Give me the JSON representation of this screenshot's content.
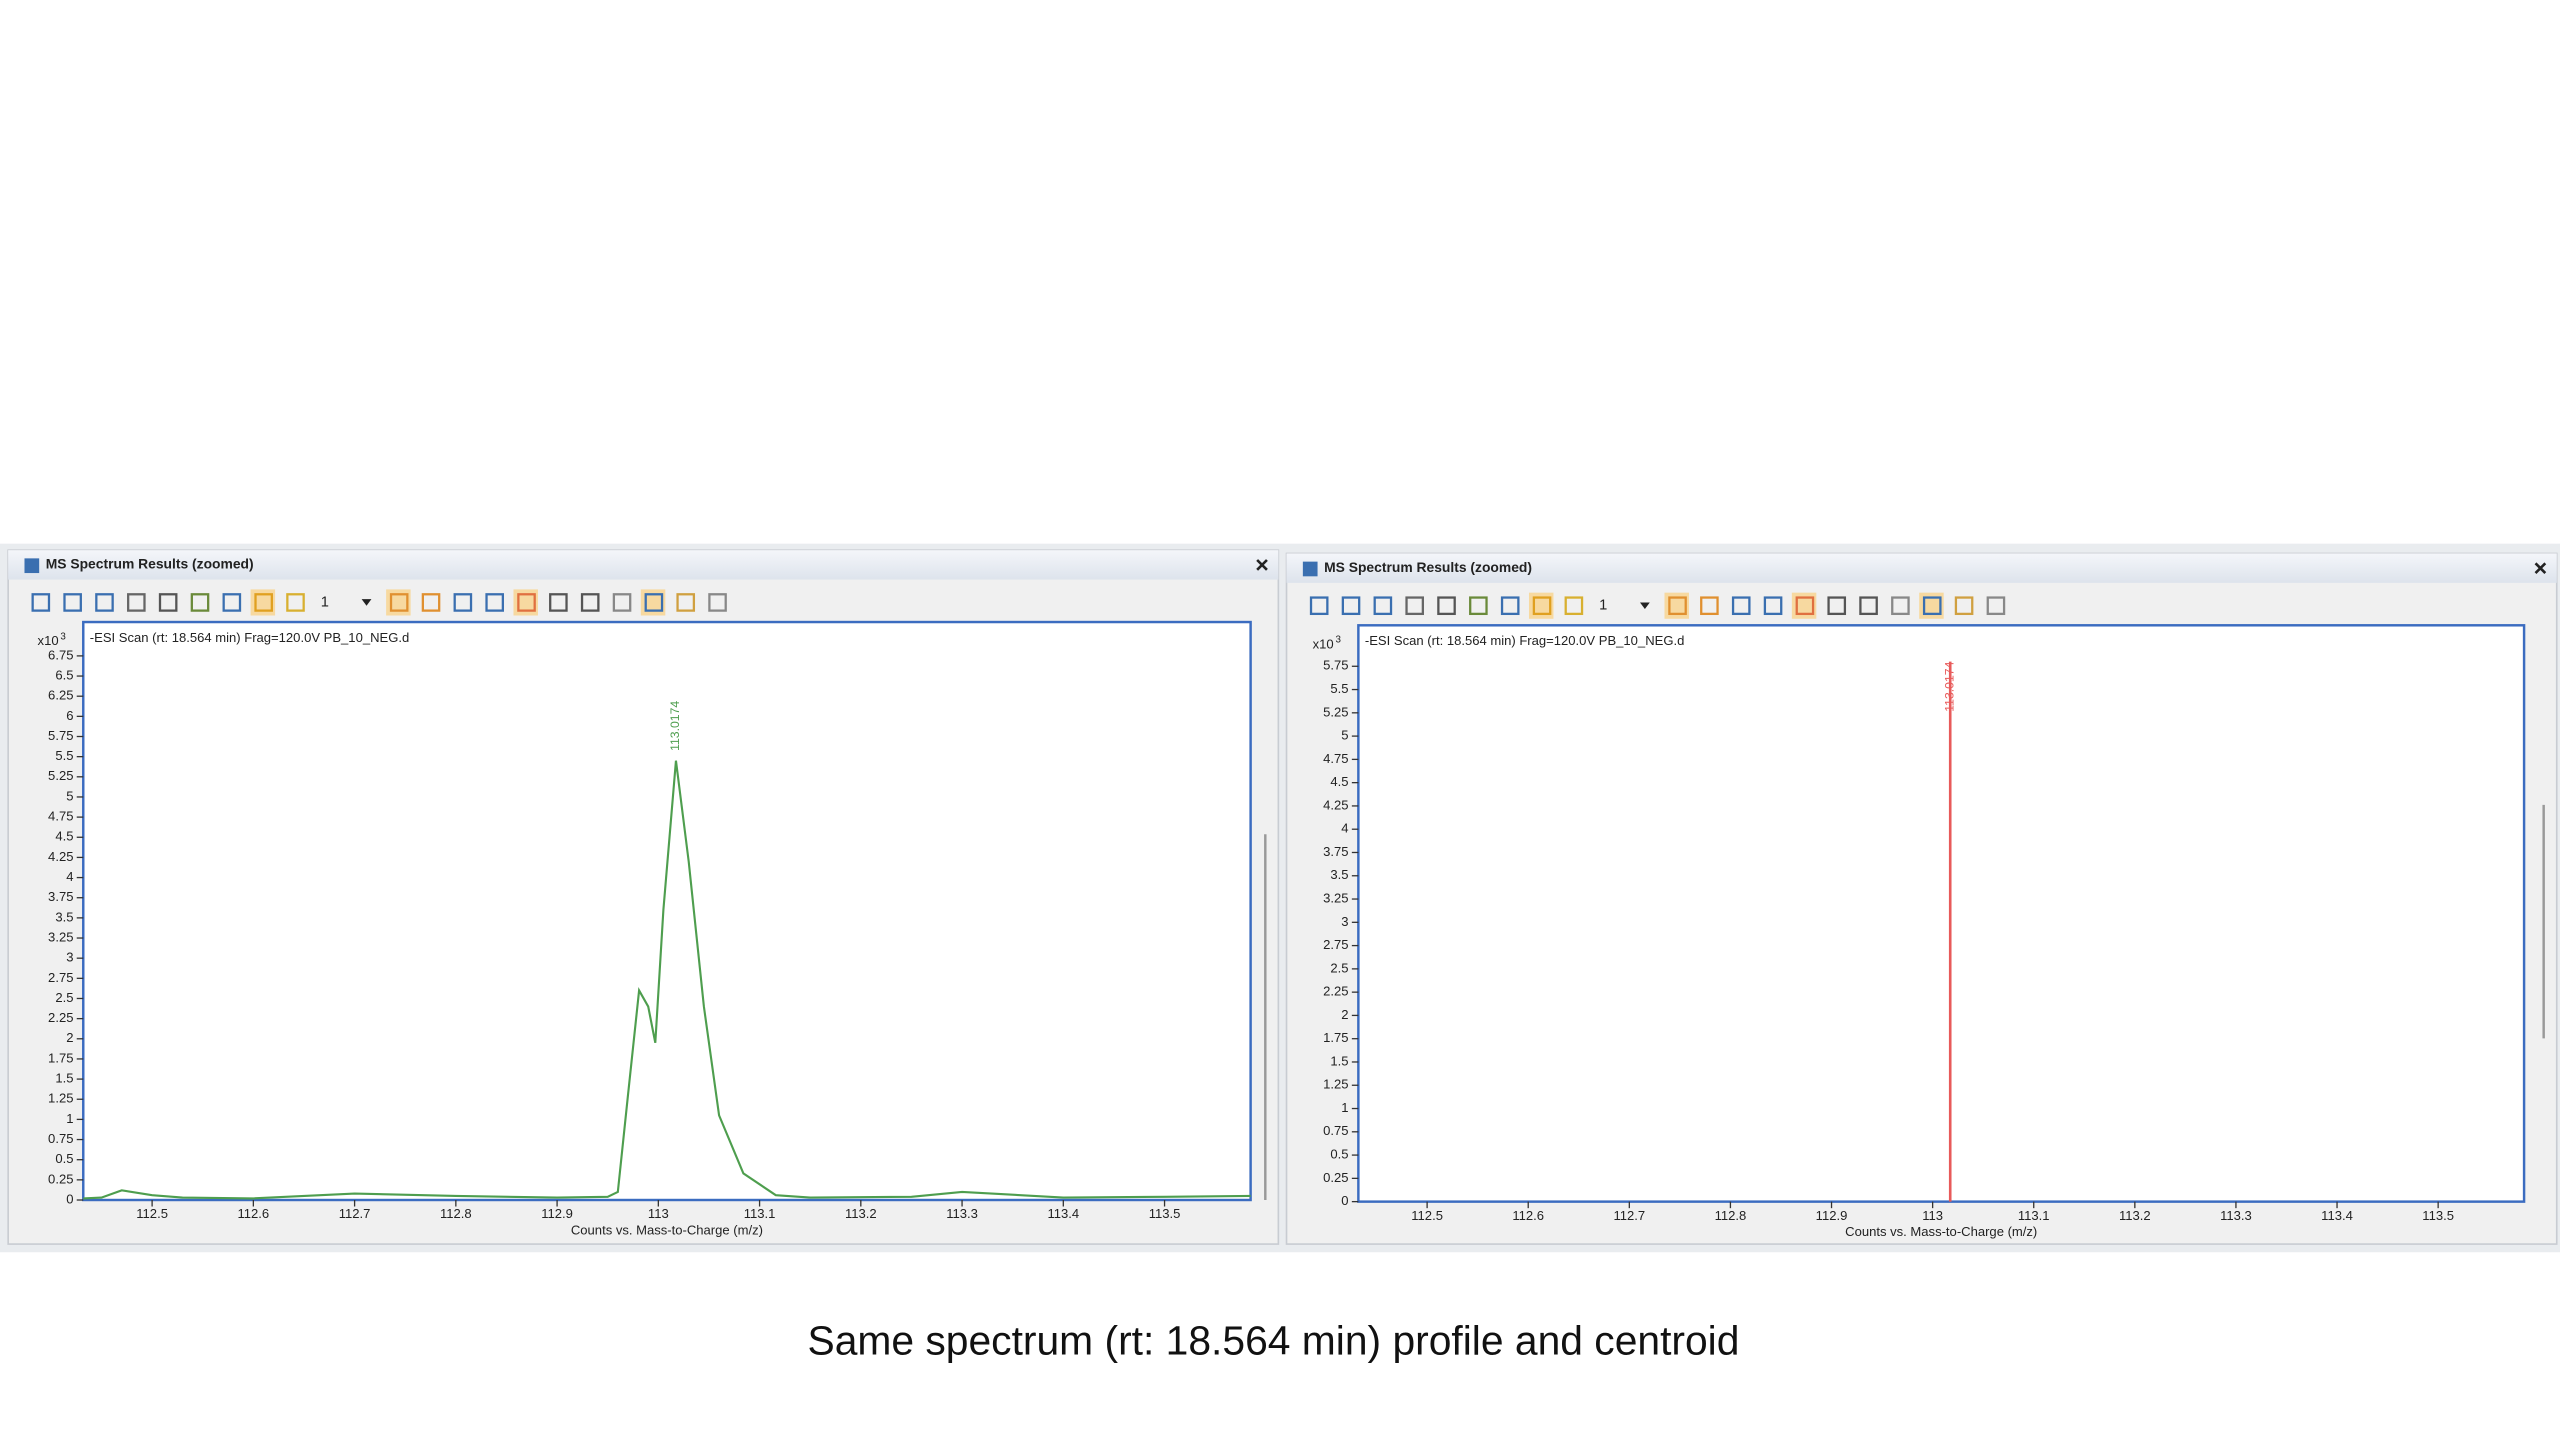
{
  "caption": "Same spectrum (rt: 18.564 min) profile and centroid",
  "chart_data": [
    {
      "type": "line",
      "window_title": "MS Spectrum Results (zoomed)",
      "toolbar_value": "1",
      "title": "-ESI Scan (rt: 18.564 min) Frag=120.0V PB_10_NEG.d",
      "x_label": "Counts vs. Mass-to-Charge (m/z)",
      "y_multiplier": "x10",
      "y_exponent": 3,
      "color": "#4e9e4e",
      "x": [
        112.432,
        112.45,
        112.47,
        112.5,
        112.53,
        112.6,
        112.7,
        112.8,
        112.9,
        112.95,
        112.96,
        112.97,
        112.981,
        112.99,
        112.997,
        113.005,
        113.0174,
        113.03,
        113.045,
        113.06,
        113.084,
        113.116,
        113.15,
        113.25,
        113.3,
        113.4,
        113.5,
        113.585
      ],
      "values": [
        0.02,
        0.03,
        0.12,
        0.06,
        0.03,
        0.02,
        0.08,
        0.05,
        0.03,
        0.04,
        0.1,
        1.3,
        2.6,
        2.4,
        1.95,
        3.6,
        5.45,
        4.2,
        2.4,
        1.05,
        0.33,
        0.06,
        0.03,
        0.04,
        0.1,
        0.03,
        0.04,
        0.05
      ],
      "annotations": [
        {
          "x": 113.0174,
          "y": 5.45
        }
      ],
      "xlim": [
        112.432,
        113.585
      ],
      "xticks": [
        112.5,
        112.6,
        112.7,
        112.8,
        112.9,
        113,
        113.1,
        113.2,
        113.3,
        113.4,
        113.5
      ],
      "ylim": [
        0,
        7.17
      ],
      "yticks": [
        0,
        0.25,
        0.5,
        0.75,
        1,
        1.25,
        1.5,
        1.75,
        2,
        2.25,
        2.5,
        2.75,
        3,
        3.25,
        3.5,
        3.75,
        4,
        4.25,
        4.5,
        4.75,
        5,
        5.25,
        5.5,
        5.75,
        6,
        6.25,
        6.5,
        6.75
      ]
    },
    {
      "type": "stem",
      "window_title": "MS Spectrum Results (zoomed)",
      "toolbar_value": "1",
      "title": "-ESI Scan (rt: 18.564 min) Frag=120.0V PB_10_NEG.d",
      "x_label": "Counts vs. Mass-to-Charge (m/z)",
      "y_multiplier": "x10",
      "y_exponent": 3,
      "color": "#e85a5a",
      "x": [
        113.0174
      ],
      "values": [
        5.8
      ],
      "xlim": [
        112.432,
        113.585
      ],
      "xticks": [
        112.5,
        112.6,
        112.7,
        112.8,
        112.9,
        113,
        113.1,
        113.2,
        113.3,
        113.4,
        113.5
      ],
      "ylim": [
        0,
        6.19
      ],
      "yticks": [
        0,
        0.25,
        0.5,
        0.75,
        1,
        1.25,
        1.5,
        1.75,
        2,
        2.25,
        2.5,
        2.75,
        3,
        3.25,
        3.5,
        3.75,
        4,
        4.25,
        4.5,
        4.75,
        5,
        5.25,
        5.5,
        5.75
      ]
    }
  ]
}
